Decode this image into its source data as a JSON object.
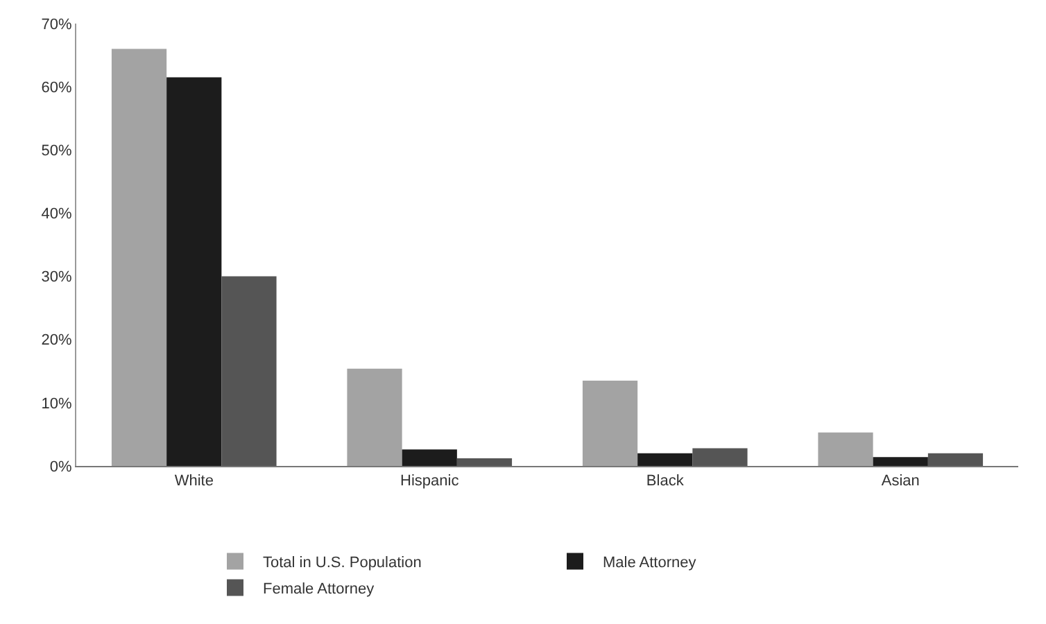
{
  "chart_data": {
    "type": "bar",
    "categories": [
      "White",
      "Hispanic",
      "Black",
      "Asian"
    ],
    "series": [
      {
        "name": "Total in U.S. Population",
        "color": "#a3a3a3",
        "values": [
          66,
          15.4,
          13.5,
          5.3
        ]
      },
      {
        "name": "Male Attorney",
        "color": "#1c1c1c",
        "values": [
          61.5,
          2.6,
          2.0,
          1.4
        ]
      },
      {
        "name": "Female Attorney",
        "color": "#555555",
        "values": [
          30,
          1.2,
          2.8,
          2.0
        ]
      }
    ],
    "ylim": [
      0,
      70
    ],
    "yticks": [
      {
        "value": 0,
        "label": "0%"
      },
      {
        "value": 10,
        "label": "10%"
      },
      {
        "value": 20,
        "label": "20%"
      },
      {
        "value": 30,
        "label": "30%"
      },
      {
        "value": 40,
        "label": "40%"
      },
      {
        "value": 50,
        "label": "50%"
      },
      {
        "value": 60,
        "label": "60%"
      },
      {
        "value": 70,
        "label": "70%"
      }
    ],
    "legend": "bottom"
  }
}
